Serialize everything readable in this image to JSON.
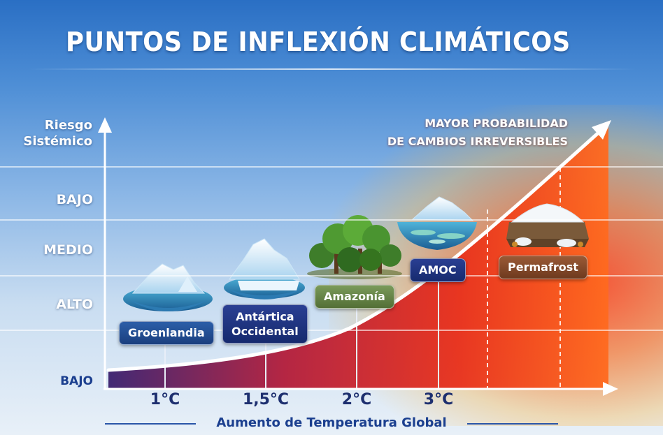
{
  "title": "PUNTOS DE INFLEXIÓN CLIMÁTICOS",
  "y_axis": {
    "title_line1": "Riesgo",
    "title_line2": "Sistémico",
    "levels": [
      "BAJO",
      "MEDIO",
      "ALTO",
      "BAJO"
    ]
  },
  "callout": {
    "line1": "MAYOR PROBABILIDAD",
    "line2": "DE CAMBIOS IRREVERSIBLES"
  },
  "x_axis": {
    "title": "Aumento de Temperatura Global",
    "ticks": [
      "1°C",
      "1,5°C",
      "2°C",
      "3°C"
    ]
  },
  "tipping_points": [
    {
      "label_line1": "Groenlandia",
      "label_line2": "",
      "icon": "iceberg-icon"
    },
    {
      "label_line1": "Antártica",
      "label_line2": "Occidental",
      "icon": "ice-shelf-icon"
    },
    {
      "label_line1": "Amazonía",
      "label_line2": "",
      "icon": "rainforest-icon"
    },
    {
      "label_line1": "AMOC",
      "label_line2": "",
      "icon": "ocean-current-icon"
    },
    {
      "label_line1": "Permafrost",
      "label_line2": "",
      "icon": "permafrost-icon"
    }
  ],
  "colors": {
    "sky_top": "#2a6fc4",
    "axis_blue": "#1b3f8f",
    "risk_red": "#e8301c",
    "risk_orange": "#ff8a2a",
    "risk_purple": "#3a1f6e"
  }
}
